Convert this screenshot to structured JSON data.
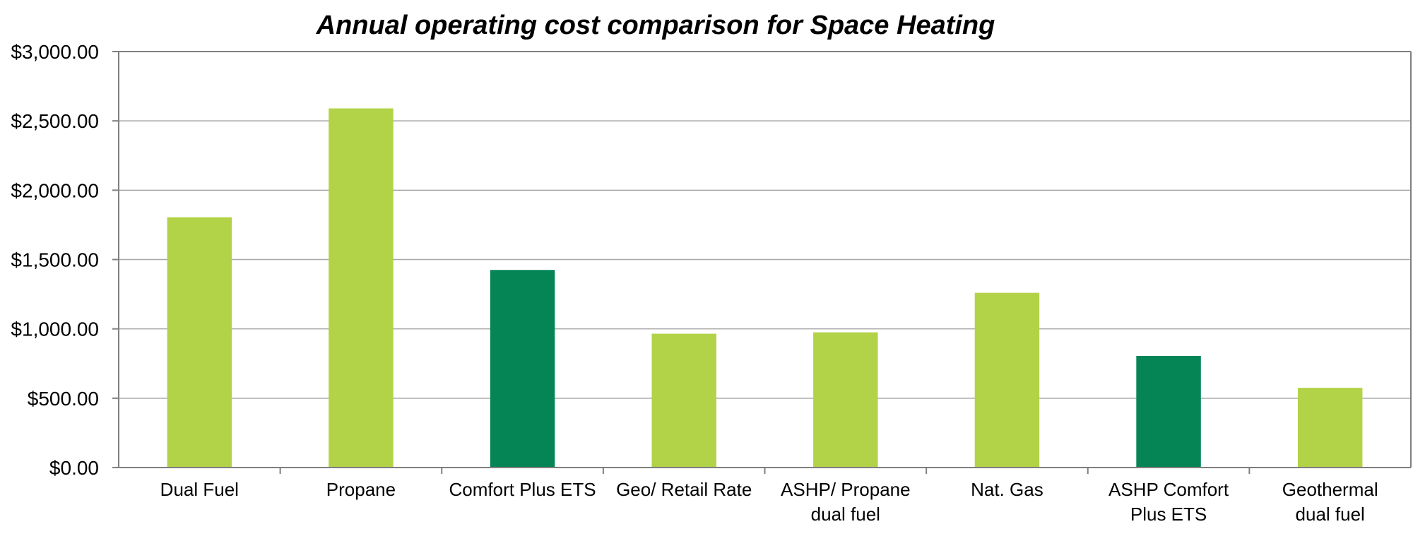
{
  "chart_data": {
    "type": "bar",
    "title": "Annual operating cost comparison for Space Heating",
    "xlabel": "",
    "ylabel": "",
    "ylim": [
      0,
      3000
    ],
    "yticks": [
      0,
      500,
      1000,
      1500,
      2000,
      2500,
      3000
    ],
    "ytick_labels": [
      "$0.00",
      "$500.00",
      "$1,000.00",
      "$1,500.00",
      "$2,000.00",
      "$2,500.00",
      "$3,000.00"
    ],
    "grid": true,
    "legend": "none",
    "categories": [
      [
        "Dual Fuel"
      ],
      [
        "Propane"
      ],
      [
        "Comfort Plus ETS"
      ],
      [
        "Geo/ Retail Rate"
      ],
      [
        "ASHP/ Propane",
        "dual fuel"
      ],
      [
        "Nat. Gas"
      ],
      [
        "ASHP Comfort",
        "Plus ETS"
      ],
      [
        "Geothermal",
        "dual fuel"
      ]
    ],
    "values": [
      1805,
      2590,
      1425,
      965,
      975,
      1260,
      805,
      575
    ],
    "bar_colors": [
      "#b2d347",
      "#b2d347",
      "#058556",
      "#b2d347",
      "#b2d347",
      "#b2d347",
      "#058556",
      "#b2d347"
    ],
    "colors": {
      "light_green": "#b2d347",
      "dark_green": "#058556",
      "gridline": "#a6a6a6",
      "axis": "#7f7f7f"
    }
  }
}
